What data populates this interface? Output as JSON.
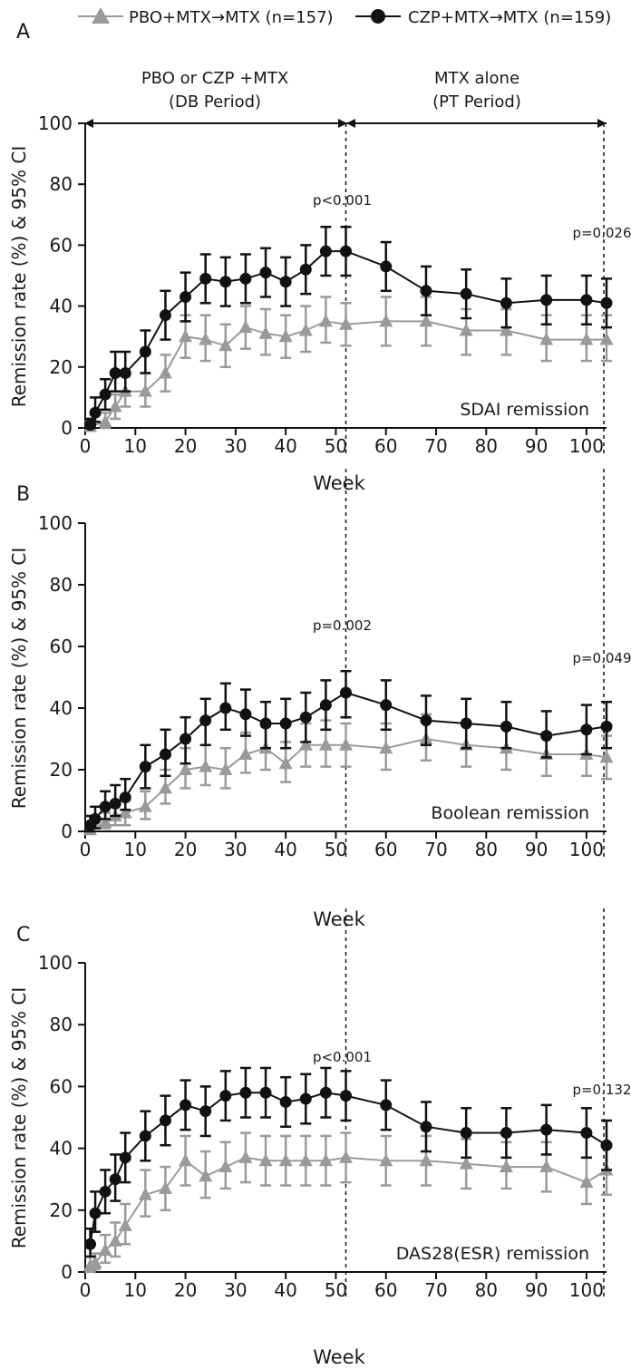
{
  "legend": {
    "series1": "PBO+MTX→MTX (n=157)",
    "series2": "CZP+MTX→MTX (n=159)"
  },
  "period_labels": {
    "db": [
      "PBO or CZP +MTX",
      "(DB Period)"
    ],
    "pt": [
      "MTX alone",
      "(PT Period)"
    ]
  },
  "colors": {
    "pbo": "#9a9a9a",
    "czp": "#111111"
  },
  "chart_data": [
    {
      "panel": "A",
      "type": "line",
      "ylabel": "Remission rate (%) & 95% CI",
      "xlabel": "Week",
      "ylim": [
        0,
        100
      ],
      "xlim": [
        0,
        104
      ],
      "yticks": [
        0,
        20,
        40,
        60,
        80,
        100
      ],
      "xticks": [
        0,
        10,
        20,
        30,
        40,
        50,
        60,
        70,
        80,
        90,
        100
      ],
      "annotation": "SDAI remission",
      "pvalues": [
        {
          "x": 52,
          "text": "p<0.001"
        },
        {
          "x": 104,
          "text": "p=0.026"
        }
      ],
      "series": [
        {
          "name": "PBO+MTX→MTX (n=157)",
          "marker": "triangle",
          "points": [
            {
              "x": 1,
              "y": 0.5,
              "lo": 0,
              "hi": 2
            },
            {
              "x": 4,
              "y": 2,
              "lo": 0,
              "hi": 5
            },
            {
              "x": 6,
              "y": 7,
              "lo": 3,
              "hi": 11
            },
            {
              "x": 8,
              "y": 12,
              "lo": 7,
              "hi": 17
            },
            {
              "x": 12,
              "y": 12,
              "lo": 7,
              "hi": 18
            },
            {
              "x": 16,
              "y": 18,
              "lo": 12,
              "hi": 24
            },
            {
              "x": 20,
              "y": 30,
              "lo": 23,
              "hi": 37
            },
            {
              "x": 24,
              "y": 29,
              "lo": 22,
              "hi": 37
            },
            {
              "x": 28,
              "y": 27,
              "lo": 20,
              "hi": 34
            },
            {
              "x": 32,
              "y": 33,
              "lo": 26,
              "hi": 40
            },
            {
              "x": 36,
              "y": 31,
              "lo": 24,
              "hi": 39
            },
            {
              "x": 40,
              "y": 30,
              "lo": 23,
              "hi": 37
            },
            {
              "x": 44,
              "y": 32,
              "lo": 25,
              "hi": 40
            },
            {
              "x": 48,
              "y": 35,
              "lo": 28,
              "hi": 43
            },
            {
              "x": 52,
              "y": 34,
              "lo": 27,
              "hi": 41
            },
            {
              "x": 60,
              "y": 35,
              "lo": 27,
              "hi": 43
            },
            {
              "x": 68,
              "y": 35,
              "lo": 27,
              "hi": 43
            },
            {
              "x": 76,
              "y": 32,
              "lo": 24,
              "hi": 39
            },
            {
              "x": 84,
              "y": 32,
              "lo": 24,
              "hi": 39
            },
            {
              "x": 92,
              "y": 29,
              "lo": 22,
              "hi": 37
            },
            {
              "x": 100,
              "y": 29,
              "lo": 22,
              "hi": 37
            },
            {
              "x": 104,
              "y": 29,
              "lo": 22,
              "hi": 37
            }
          ]
        },
        {
          "name": "CZP+MTX→MTX (n=159)",
          "marker": "circle",
          "points": [
            {
              "x": 1,
              "y": 1,
              "lo": 0,
              "hi": 3
            },
            {
              "x": 2,
              "y": 5,
              "lo": 2,
              "hi": 10
            },
            {
              "x": 4,
              "y": 11,
              "lo": 6,
              "hi": 16
            },
            {
              "x": 6,
              "y": 18,
              "lo": 12,
              "hi": 25
            },
            {
              "x": 8,
              "y": 18,
              "lo": 12,
              "hi": 25
            },
            {
              "x": 12,
              "y": 25,
              "lo": 18,
              "hi": 32
            },
            {
              "x": 16,
              "y": 37,
              "lo": 29,
              "hi": 45
            },
            {
              "x": 20,
              "y": 43,
              "lo": 35,
              "hi": 51
            },
            {
              "x": 24,
              "y": 49,
              "lo": 41,
              "hi": 57
            },
            {
              "x": 28,
              "y": 48,
              "lo": 40,
              "hi": 56
            },
            {
              "x": 32,
              "y": 49,
              "lo": 41,
              "hi": 57
            },
            {
              "x": 36,
              "y": 51,
              "lo": 43,
              "hi": 59
            },
            {
              "x": 40,
              "y": 48,
              "lo": 40,
              "hi": 56
            },
            {
              "x": 44,
              "y": 52,
              "lo": 44,
              "hi": 60
            },
            {
              "x": 48,
              "y": 58,
              "lo": 50,
              "hi": 66
            },
            {
              "x": 52,
              "y": 58,
              "lo": 50,
              "hi": 66
            },
            {
              "x": 60,
              "y": 53,
              "lo": 45,
              "hi": 61
            },
            {
              "x": 68,
              "y": 45,
              "lo": 37,
              "hi": 53
            },
            {
              "x": 76,
              "y": 44,
              "lo": 36,
              "hi": 52
            },
            {
              "x": 84,
              "y": 41,
              "lo": 33,
              "hi": 49
            },
            {
              "x": 92,
              "y": 42,
              "lo": 34,
              "hi": 50
            },
            {
              "x": 100,
              "y": 42,
              "lo": 34,
              "hi": 50
            },
            {
              "x": 104,
              "y": 41,
              "lo": 33,
              "hi": 49
            }
          ]
        }
      ]
    },
    {
      "panel": "B",
      "type": "line",
      "ylabel": "Remission rate (%) & 95% CI",
      "xlabel": "Week",
      "ylim": [
        0,
        100
      ],
      "xlim": [
        0,
        104
      ],
      "yticks": [
        0,
        20,
        40,
        60,
        80,
        100
      ],
      "xticks": [
        0,
        10,
        20,
        30,
        40,
        50,
        60,
        70,
        80,
        90,
        100
      ],
      "annotation": "Boolean remission",
      "pvalues": [
        {
          "x": 52,
          "text": "p=0.002"
        },
        {
          "x": 104,
          "text": "p=0.049"
        }
      ],
      "series": [
        {
          "name": "PBO+MTX→MTX (n=157)",
          "marker": "triangle",
          "points": [
            {
              "x": 1,
              "y": 0.5,
              "lo": 0,
              "hi": 2
            },
            {
              "x": 4,
              "y": 3,
              "lo": 1,
              "hi": 6
            },
            {
              "x": 6,
              "y": 5,
              "lo": 2,
              "hi": 9
            },
            {
              "x": 8,
              "y": 6,
              "lo": 2,
              "hi": 10
            },
            {
              "x": 12,
              "y": 8,
              "lo": 4,
              "hi": 13
            },
            {
              "x": 16,
              "y": 14,
              "lo": 9,
              "hi": 20
            },
            {
              "x": 20,
              "y": 20,
              "lo": 14,
              "hi": 27
            },
            {
              "x": 24,
              "y": 21,
              "lo": 15,
              "hi": 28
            },
            {
              "x": 28,
              "y": 20,
              "lo": 14,
              "hi": 27
            },
            {
              "x": 32,
              "y": 25,
              "lo": 19,
              "hi": 32
            },
            {
              "x": 36,
              "y": 27,
              "lo": 20,
              "hi": 34
            },
            {
              "x": 40,
              "y": 22,
              "lo": 16,
              "hi": 29
            },
            {
              "x": 44,
              "y": 28,
              "lo": 21,
              "hi": 35
            },
            {
              "x": 48,
              "y": 28,
              "lo": 21,
              "hi": 36
            },
            {
              "x": 52,
              "y": 28,
              "lo": 21,
              "hi": 35
            },
            {
              "x": 60,
              "y": 27,
              "lo": 20,
              "hi": 35
            },
            {
              "x": 68,
              "y": 30,
              "lo": 23,
              "hi": 38
            },
            {
              "x": 76,
              "y": 28,
              "lo": 21,
              "hi": 35
            },
            {
              "x": 84,
              "y": 27,
              "lo": 20,
              "hi": 34
            },
            {
              "x": 92,
              "y": 25,
              "lo": 18,
              "hi": 32
            },
            {
              "x": 100,
              "y": 25,
              "lo": 18,
              "hi": 33
            },
            {
              "x": 104,
              "y": 24,
              "lo": 17,
              "hi": 31
            }
          ]
        },
        {
          "name": "CZP+MTX→MTX (n=159)",
          "marker": "circle",
          "points": [
            {
              "x": 1,
              "y": 2,
              "lo": 0,
              "hi": 5
            },
            {
              "x": 2,
              "y": 4,
              "lo": 1,
              "hi": 8
            },
            {
              "x": 4,
              "y": 8,
              "lo": 4,
              "hi": 13
            },
            {
              "x": 6,
              "y": 9,
              "lo": 5,
              "hi": 15
            },
            {
              "x": 8,
              "y": 11,
              "lo": 7,
              "hi": 17
            },
            {
              "x": 12,
              "y": 21,
              "lo": 14,
              "hi": 28
            },
            {
              "x": 16,
              "y": 25,
              "lo": 18,
              "hi": 33
            },
            {
              "x": 20,
              "y": 30,
              "lo": 22,
              "hi": 37
            },
            {
              "x": 24,
              "y": 36,
              "lo": 28,
              "hi": 43
            },
            {
              "x": 28,
              "y": 40,
              "lo": 33,
              "hi": 48
            },
            {
              "x": 32,
              "y": 38,
              "lo": 31,
              "hi": 46
            },
            {
              "x": 36,
              "y": 35,
              "lo": 27,
              "hi": 42
            },
            {
              "x": 40,
              "y": 35,
              "lo": 27,
              "hi": 43
            },
            {
              "x": 44,
              "y": 37,
              "lo": 29,
              "hi": 45
            },
            {
              "x": 48,
              "y": 41,
              "lo": 33,
              "hi": 49
            },
            {
              "x": 52,
              "y": 45,
              "lo": 37,
              "hi": 52
            },
            {
              "x": 60,
              "y": 41,
              "lo": 33,
              "hi": 49
            },
            {
              "x": 68,
              "y": 36,
              "lo": 28,
              "hi": 44
            },
            {
              "x": 76,
              "y": 35,
              "lo": 27,
              "hi": 43
            },
            {
              "x": 84,
              "y": 34,
              "lo": 27,
              "hi": 42
            },
            {
              "x": 92,
              "y": 31,
              "lo": 24,
              "hi": 39
            },
            {
              "x": 100,
              "y": 33,
              "lo": 25,
              "hi": 41
            },
            {
              "x": 104,
              "y": 34,
              "lo": 27,
              "hi": 42
            }
          ]
        }
      ]
    },
    {
      "panel": "C",
      "type": "line",
      "ylabel": "Remission rate (%) & 95% CI",
      "xlabel": "Week",
      "ylim": [
        0,
        100
      ],
      "xlim": [
        0,
        104
      ],
      "yticks": [
        0,
        20,
        40,
        60,
        80,
        100
      ],
      "xticks": [
        0,
        10,
        20,
        30,
        40,
        50,
        60,
        70,
        80,
        90,
        100
      ],
      "annotation": "DAS28(ESR) remission",
      "pvalues": [
        {
          "x": 52,
          "text": "p<0.001"
        },
        {
          "x": 104,
          "text": "p=0.132"
        }
      ],
      "series": [
        {
          "name": "PBO+MTX→MTX (n=157)",
          "marker": "triangle",
          "points": [
            {
              "x": 1,
              "y": 2,
              "lo": 0,
              "hi": 5
            },
            {
              "x": 2,
              "y": 3,
              "lo": 1,
              "hi": 6
            },
            {
              "x": 4,
              "y": 7,
              "lo": 3,
              "hi": 12
            },
            {
              "x": 6,
              "y": 10,
              "lo": 5,
              "hi": 16
            },
            {
              "x": 8,
              "y": 15,
              "lo": 9,
              "hi": 22
            },
            {
              "x": 12,
              "y": 25,
              "lo": 18,
              "hi": 33
            },
            {
              "x": 16,
              "y": 27,
              "lo": 20,
              "hi": 34
            },
            {
              "x": 20,
              "y": 36,
              "lo": 28,
              "hi": 44
            },
            {
              "x": 24,
              "y": 31,
              "lo": 24,
              "hi": 39
            },
            {
              "x": 28,
              "y": 34,
              "lo": 27,
              "hi": 42
            },
            {
              "x": 32,
              "y": 37,
              "lo": 29,
              "hi": 45
            },
            {
              "x": 36,
              "y": 36,
              "lo": 28,
              "hi": 44
            },
            {
              "x": 40,
              "y": 36,
              "lo": 28,
              "hi": 44
            },
            {
              "x": 44,
              "y": 36,
              "lo": 28,
              "hi": 44
            },
            {
              "x": 48,
              "y": 36,
              "lo": 28,
              "hi": 44
            },
            {
              "x": 52,
              "y": 37,
              "lo": 29,
              "hi": 45
            },
            {
              "x": 60,
              "y": 36,
              "lo": 28,
              "hi": 44
            },
            {
              "x": 68,
              "y": 36,
              "lo": 28,
              "hi": 44
            },
            {
              "x": 76,
              "y": 35,
              "lo": 27,
              "hi": 43
            },
            {
              "x": 84,
              "y": 34,
              "lo": 27,
              "hi": 42
            },
            {
              "x": 92,
              "y": 34,
              "lo": 26,
              "hi": 42
            },
            {
              "x": 100,
              "y": 29,
              "lo": 22,
              "hi": 37
            },
            {
              "x": 104,
              "y": 33,
              "lo": 25,
              "hi": 41
            }
          ]
        },
        {
          "name": "CZP+MTX→MTX (n=159)",
          "marker": "circle",
          "points": [
            {
              "x": 1,
              "y": 9,
              "lo": 5,
              "hi": 14
            },
            {
              "x": 2,
              "y": 19,
              "lo": 13,
              "hi": 26
            },
            {
              "x": 4,
              "y": 26,
              "lo": 19,
              "hi": 33
            },
            {
              "x": 6,
              "y": 30,
              "lo": 23,
              "hi": 38
            },
            {
              "x": 8,
              "y": 37,
              "lo": 29,
              "hi": 45
            },
            {
              "x": 12,
              "y": 44,
              "lo": 36,
              "hi": 52
            },
            {
              "x": 16,
              "y": 49,
              "lo": 41,
              "hi": 57
            },
            {
              "x": 20,
              "y": 54,
              "lo": 46,
              "hi": 62
            },
            {
              "x": 24,
              "y": 52,
              "lo": 44,
              "hi": 60
            },
            {
              "x": 28,
              "y": 57,
              "lo": 49,
              "hi": 65
            },
            {
              "x": 32,
              "y": 58,
              "lo": 50,
              "hi": 66
            },
            {
              "x": 36,
              "y": 58,
              "lo": 50,
              "hi": 66
            },
            {
              "x": 40,
              "y": 55,
              "lo": 47,
              "hi": 63
            },
            {
              "x": 44,
              "y": 56,
              "lo": 48,
              "hi": 64
            },
            {
              "x": 48,
              "y": 58,
              "lo": 50,
              "hi": 66
            },
            {
              "x": 52,
              "y": 57,
              "lo": 49,
              "hi": 65
            },
            {
              "x": 60,
              "y": 54,
              "lo": 46,
              "hi": 62
            },
            {
              "x": 68,
              "y": 47,
              "lo": 39,
              "hi": 55
            },
            {
              "x": 76,
              "y": 45,
              "lo": 37,
              "hi": 53
            },
            {
              "x": 84,
              "y": 45,
              "lo": 37,
              "hi": 53
            },
            {
              "x": 92,
              "y": 46,
              "lo": 38,
              "hi": 54
            },
            {
              "x": 100,
              "y": 45,
              "lo": 37,
              "hi": 53
            },
            {
              "x": 104,
              "y": 41,
              "lo": 33,
              "hi": 49
            }
          ]
        }
      ]
    }
  ]
}
